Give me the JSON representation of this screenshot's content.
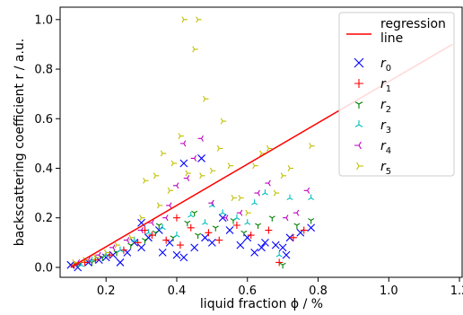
{
  "chart_data": {
    "type": "scatter",
    "xlabel": "liquid fraction ϕ / %",
    "ylabel": "backscattering coefficient r / a.u.",
    "xlim": [
      0.07,
      1.21
    ],
    "ylim": [
      -0.04,
      1.05
    ],
    "x_ticks": [
      "0.2",
      "0.4",
      "0.6",
      "0.8",
      "1.0",
      "1.2"
    ],
    "x_tick_values": [
      0.2,
      0.4,
      0.6,
      0.8,
      1.0,
      1.2
    ],
    "y_ticks": [
      "0.0",
      "0.2",
      "0.4",
      "0.6",
      "0.8",
      "1.0"
    ],
    "y_tick_values": [
      0.0,
      0.2,
      0.4,
      0.6,
      0.8,
      1.0
    ],
    "legend_position": "top-right",
    "regression": {
      "name_line1": "regression",
      "name_line2": " line",
      "color": "#ff0000",
      "x": [
        0.1,
        1.18
      ],
      "y": [
        0.0,
        0.9
      ]
    },
    "series": [
      {
        "name": "r0",
        "label_base": "r",
        "label_sub": "0",
        "marker": "x",
        "color": "#0000ff",
        "points": [
          [
            0.1,
            0.01
          ],
          [
            0.12,
            0.0
          ],
          [
            0.15,
            0.02
          ],
          [
            0.18,
            0.03
          ],
          [
            0.2,
            0.04
          ],
          [
            0.22,
            0.05
          ],
          [
            0.24,
            0.02
          ],
          [
            0.26,
            0.06
          ],
          [
            0.28,
            0.1
          ],
          [
            0.3,
            0.08
          ],
          [
            0.32,
            0.12
          ],
          [
            0.35,
            0.15
          ],
          [
            0.38,
            0.1
          ],
          [
            0.4,
            0.05
          ],
          [
            0.42,
            0.04
          ],
          [
            0.45,
            0.08
          ],
          [
            0.48,
            0.12
          ],
          [
            0.5,
            0.1
          ],
          [
            0.55,
            0.15
          ],
          [
            0.58,
            0.09
          ],
          [
            0.6,
            0.12
          ],
          [
            0.62,
            0.06
          ],
          [
            0.65,
            0.1
          ],
          [
            0.68,
            0.09
          ],
          [
            0.7,
            0.08
          ],
          [
            0.72,
            0.12
          ],
          [
            0.75,
            0.14
          ],
          [
            0.78,
            0.16
          ],
          [
            0.42,
            0.42
          ],
          [
            0.47,
            0.44
          ],
          [
            0.3,
            0.18
          ],
          [
            0.53,
            0.2
          ],
          [
            0.64,
            0.08
          ],
          [
            0.71,
            0.05
          ],
          [
            0.36,
            0.06
          ]
        ]
      },
      {
        "name": "r1",
        "label_base": "r",
        "label_sub": "1",
        "marker": "+",
        "color": "#ff0000",
        "points": [
          [
            0.11,
            0.01
          ],
          [
            0.14,
            0.02
          ],
          [
            0.17,
            0.03
          ],
          [
            0.21,
            0.05
          ],
          [
            0.25,
            0.07
          ],
          [
            0.29,
            0.1
          ],
          [
            0.33,
            0.13
          ],
          [
            0.37,
            0.11
          ],
          [
            0.41,
            0.09
          ],
          [
            0.44,
            0.16
          ],
          [
            0.49,
            0.14
          ],
          [
            0.52,
            0.11
          ],
          [
            0.57,
            0.17
          ],
          [
            0.61,
            0.13
          ],
          [
            0.66,
            0.15
          ],
          [
            0.69,
            0.02
          ],
          [
            0.73,
            0.12
          ],
          [
            0.76,
            0.15
          ],
          [
            0.4,
            0.2
          ],
          [
            0.31,
            0.15
          ]
        ]
      },
      {
        "name": "r2",
        "label_base": "r",
        "label_sub": "2",
        "marker": "tri_down",
        "color": "#008000",
        "points": [
          [
            0.12,
            0.01
          ],
          [
            0.16,
            0.02
          ],
          [
            0.19,
            0.04
          ],
          [
            0.23,
            0.06
          ],
          [
            0.27,
            0.09
          ],
          [
            0.31,
            0.11
          ],
          [
            0.34,
            0.14
          ],
          [
            0.39,
            0.12
          ],
          [
            0.43,
            0.18
          ],
          [
            0.46,
            0.13
          ],
          [
            0.51,
            0.16
          ],
          [
            0.56,
            0.19
          ],
          [
            0.59,
            0.14
          ],
          [
            0.63,
            0.17
          ],
          [
            0.67,
            0.2
          ],
          [
            0.7,
            0.01
          ],
          [
            0.74,
            0.17
          ],
          [
            0.78,
            0.19
          ],
          [
            0.45,
            0.22
          ],
          [
            0.35,
            0.17
          ]
        ]
      },
      {
        "name": "r3",
        "label_base": "r",
        "label_sub": "3",
        "marker": "tri_up",
        "color": "#00bfbf",
        "points": [
          [
            0.13,
            0.01
          ],
          [
            0.16,
            0.03
          ],
          [
            0.2,
            0.05
          ],
          [
            0.24,
            0.07
          ],
          [
            0.28,
            0.11
          ],
          [
            0.32,
            0.14
          ],
          [
            0.36,
            0.16
          ],
          [
            0.4,
            0.13
          ],
          [
            0.44,
            0.21
          ],
          [
            0.48,
            0.18
          ],
          [
            0.53,
            0.22
          ],
          [
            0.57,
            0.2
          ],
          [
            0.62,
            0.26
          ],
          [
            0.65,
            0.3
          ],
          [
            0.69,
            0.05
          ],
          [
            0.72,
            0.28
          ],
          [
            0.78,
            0.28
          ],
          [
            0.5,
            0.25
          ],
          [
            0.6,
            0.18
          ]
        ]
      },
      {
        "name": "r4",
        "label_base": "r",
        "label_sub": "4",
        "marker": "tri_left",
        "color": "#bf00bf",
        "points": [
          [
            0.12,
            0.02
          ],
          [
            0.15,
            0.03
          ],
          [
            0.18,
            0.05
          ],
          [
            0.22,
            0.08
          ],
          [
            0.26,
            0.11
          ],
          [
            0.3,
            0.15
          ],
          [
            0.33,
            0.18
          ],
          [
            0.37,
            0.2
          ],
          [
            0.4,
            0.33
          ],
          [
            0.42,
            0.5
          ],
          [
            0.45,
            0.44
          ],
          [
            0.47,
            0.52
          ],
          [
            0.5,
            0.26
          ],
          [
            0.54,
            0.2
          ],
          [
            0.58,
            0.22
          ],
          [
            0.63,
            0.3
          ],
          [
            0.66,
            0.34
          ],
          [
            0.71,
            0.2
          ],
          [
            0.74,
            0.22
          ],
          [
            0.77,
            0.31
          ],
          [
            0.43,
            0.36
          ],
          [
            0.38,
            0.25
          ]
        ]
      },
      {
        "name": "r5",
        "label_base": "r",
        "label_sub": "5",
        "marker": "tri_right",
        "color": "#bfbf00",
        "points": [
          [
            0.11,
            0.02
          ],
          [
            0.14,
            0.03
          ],
          [
            0.17,
            0.04
          ],
          [
            0.2,
            0.06
          ],
          [
            0.23,
            0.09
          ],
          [
            0.27,
            0.12
          ],
          [
            0.3,
            0.2
          ],
          [
            0.31,
            0.35
          ],
          [
            0.34,
            0.37
          ],
          [
            0.36,
            0.46
          ],
          [
            0.38,
            0.31
          ],
          [
            0.41,
            0.53
          ],
          [
            0.42,
            1.0
          ],
          [
            0.45,
            0.88
          ],
          [
            0.46,
            1.0
          ],
          [
            0.48,
            0.68
          ],
          [
            0.43,
            0.38
          ],
          [
            0.47,
            0.37
          ],
          [
            0.5,
            0.39
          ],
          [
            0.52,
            0.48
          ],
          [
            0.53,
            0.59
          ],
          [
            0.55,
            0.41
          ],
          [
            0.58,
            0.28
          ],
          [
            0.62,
            0.41
          ],
          [
            0.64,
            0.46
          ],
          [
            0.66,
            0.48
          ],
          [
            0.68,
            0.3
          ],
          [
            0.7,
            0.37
          ],
          [
            0.72,
            0.4
          ],
          [
            0.78,
            0.49
          ],
          [
            0.35,
            0.25
          ],
          [
            0.56,
            0.28
          ],
          [
            0.6,
            0.22
          ],
          [
            0.39,
            0.42
          ]
        ]
      }
    ]
  }
}
